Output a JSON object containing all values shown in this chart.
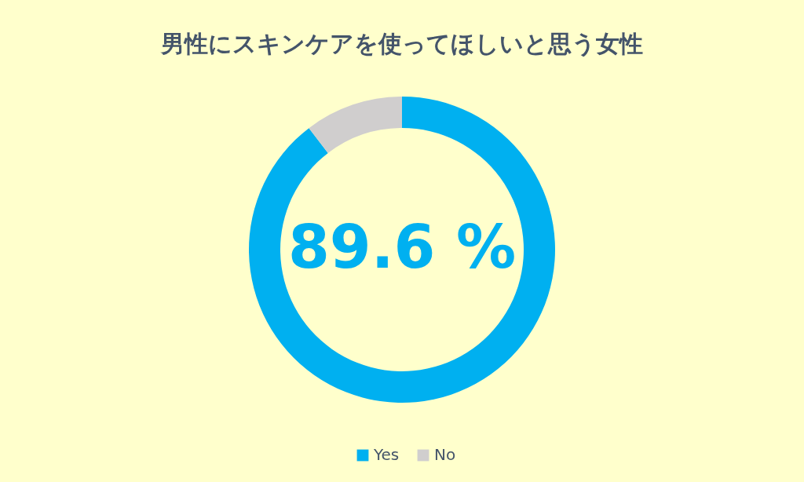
{
  "chart_data": {
    "type": "donut",
    "title": "男性にスキンケアを使ってほしいと思う女性",
    "categories": [
      "Yes",
      "No"
    ],
    "values": [
      89.6,
      10.4
    ],
    "colors": [
      "#00b0f0",
      "#d0cece"
    ],
    "annotations": [
      "89.6 %"
    ],
    "legend": "bottom"
  }
}
